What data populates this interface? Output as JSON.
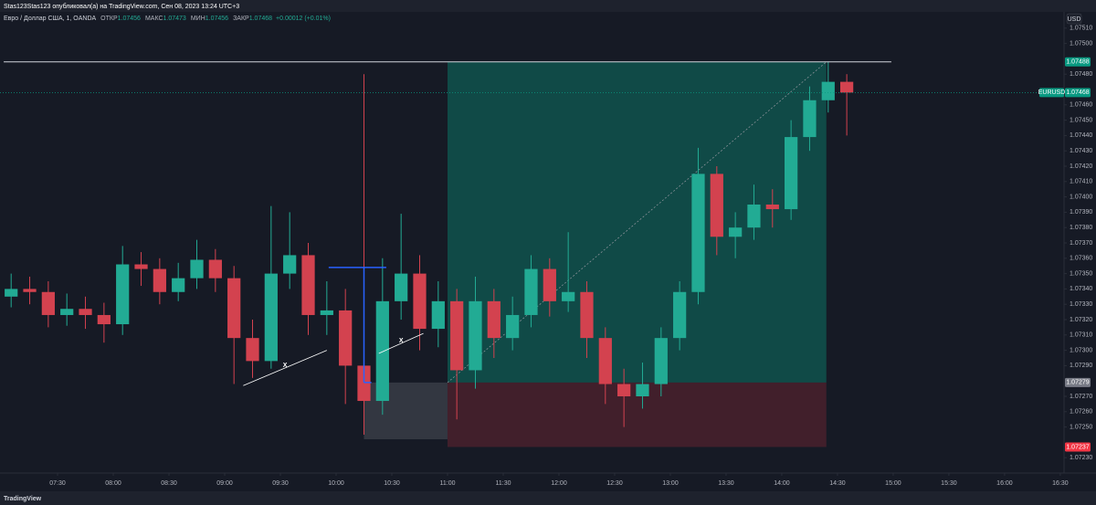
{
  "chart_data": {
    "type": "candlestick",
    "publisher_line": "Stas123Stas123 опубликовал(а) на TradingView.com, Сен 08, 2023 13:24 UTC+3",
    "symbol_title": "Евро / Доллар США, 1, OANDA",
    "ohlc_legend": [
      {
        "name": "ОТКР",
        "value": "1.07456"
      },
      {
        "name": "МАКС",
        "value": "1.07473"
      },
      {
        "name": "МИН",
        "value": "1.07456"
      },
      {
        "name": "ЗАКР",
        "value": "1.07468"
      }
    ],
    "change": "+0.00012 (+0.01%)",
    "currency": "USD",
    "footer": "TradingView",
    "grid": false,
    "up_color": "#22ab94",
    "down_color": "#d3424f",
    "x": [
      "07:00",
      "07:10",
      "07:20",
      "07:30",
      "07:40",
      "07:50",
      "08:00",
      "08:10",
      "08:20",
      "08:30",
      "08:40",
      "08:50",
      "09:00",
      "09:10",
      "09:20",
      "09:30",
      "09:40",
      "09:50",
      "10:00",
      "10:10",
      "10:20",
      "10:30",
      "10:40",
      "10:50",
      "11:00",
      "11:10",
      "11:20",
      "11:30",
      "11:40",
      "11:50",
      "12:00",
      "12:10",
      "12:20",
      "12:30",
      "12:40",
      "12:50",
      "13:00",
      "13:10",
      "13:20",
      "13:30",
      "13:40",
      "13:50",
      "14:00",
      "14:10",
      "14:20",
      "14:30"
    ],
    "open": [
      1.07335,
      1.0734,
      1.07338,
      1.07323,
      1.07327,
      1.07323,
      1.07317,
      1.07356,
      1.07353,
      1.07338,
      1.07347,
      1.07359,
      1.07347,
      1.07308,
      1.07293,
      1.0735,
      1.07362,
      1.07323,
      1.07326,
      1.0729,
      1.07267,
      1.07332,
      1.0735,
      1.07314,
      1.07332,
      1.07287,
      1.07332,
      1.07308,
      1.07323,
      1.07353,
      1.07332,
      1.07338,
      1.07308,
      1.07278,
      1.0727,
      1.07278,
      1.07308,
      1.07338,
      1.07415,
      1.07374,
      1.0738,
      1.07395,
      1.07392,
      1.07439,
      1.07463,
      1.07475
    ],
    "high": [
      1.0735,
      1.07348,
      1.07345,
      1.07337,
      1.07335,
      1.07331,
      1.07368,
      1.07364,
      1.0736,
      1.07357,
      1.07372,
      1.07366,
      1.07355,
      1.0732,
      1.07394,
      1.0739,
      1.0737,
      1.07345,
      1.0734,
      1.0748,
      1.0736,
      1.07389,
      1.07362,
      1.07345,
      1.0734,
      1.07348,
      1.0734,
      1.07335,
      1.07362,
      1.0736,
      1.07377,
      1.07345,
      1.07315,
      1.07288,
      1.07292,
      1.07315,
      1.07345,
      1.07432,
      1.0742,
      1.0739,
      1.07408,
      1.07405,
      1.0745,
      1.07472,
      1.07488,
      1.0748
    ],
    "low": [
      1.07328,
      1.0733,
      1.07315,
      1.07316,
      1.07314,
      1.07305,
      1.0731,
      1.07342,
      1.0733,
      1.07332,
      1.0734,
      1.07338,
      1.07278,
      1.07282,
      1.07288,
      1.0734,
      1.0731,
      1.0731,
      1.07265,
      1.07245,
      1.07258,
      1.0732,
      1.073,
      1.07302,
      1.07255,
      1.07275,
      1.07295,
      1.073,
      1.07315,
      1.07322,
      1.07325,
      1.07295,
      1.07265,
      1.0725,
      1.07262,
      1.0727,
      1.073,
      1.0733,
      1.07362,
      1.0736,
      1.07372,
      1.0738,
      1.07385,
      1.0743,
      1.07455,
      1.0744
    ],
    "close": [
      1.0734,
      1.07338,
      1.07323,
      1.07327,
      1.07323,
      1.07317,
      1.07356,
      1.07353,
      1.07338,
      1.07347,
      1.07359,
      1.07347,
      1.07308,
      1.07293,
      1.0735,
      1.07362,
      1.07323,
      1.07326,
      1.0729,
      1.07267,
      1.07332,
      1.0735,
      1.07314,
      1.07332,
      1.07287,
      1.07332,
      1.07308,
      1.07323,
      1.07353,
      1.07332,
      1.07338,
      1.07308,
      1.07278,
      1.0727,
      1.07278,
      1.07308,
      1.07338,
      1.07415,
      1.07374,
      1.0738,
      1.07395,
      1.07392,
      1.07439,
      1.07463,
      1.07475,
      1.07468
    ],
    "xlim": [
      "06:59",
      "16:32"
    ],
    "xticks": [
      "07:30",
      "08:00",
      "08:30",
      "09:00",
      "09:30",
      "10:00",
      "10:30",
      "11:00",
      "11:30",
      "12:00",
      "12:30",
      "13:00",
      "13:30",
      "14:00",
      "14:30",
      "15:00",
      "15:30",
      "16:00",
      "16:30"
    ],
    "ylim": [
      1.0722,
      1.0752
    ],
    "yticks": [
      {
        "value": 1.0751,
        "label": "1.07510"
      },
      {
        "value": 1.075,
        "label": "1.07500"
      },
      {
        "value": 1.0748,
        "label": "1.07480"
      },
      {
        "value": 1.0746,
        "label": "1.07460"
      },
      {
        "value": 1.0745,
        "label": "1.07450"
      },
      {
        "value": 1.0744,
        "label": "1.07440"
      },
      {
        "value": 1.0743,
        "label": "1.07430"
      },
      {
        "value": 1.0742,
        "label": "1.07420"
      },
      {
        "value": 1.0741,
        "label": "1.07410"
      },
      {
        "value": 1.074,
        "label": "1.07400"
      },
      {
        "value": 1.0739,
        "label": "1.07390"
      },
      {
        "value": 1.0738,
        "label": "1.07380"
      },
      {
        "value": 1.0737,
        "label": "1.07370"
      },
      {
        "value": 1.0736,
        "label": "1.07360"
      },
      {
        "value": 1.0735,
        "label": "1.07350"
      },
      {
        "value": 1.0734,
        "label": "1.07340"
      },
      {
        "value": 1.0733,
        "label": "1.07330"
      },
      {
        "value": 1.0732,
        "label": "1.07320"
      },
      {
        "value": 1.0731,
        "label": "1.07310"
      },
      {
        "value": 1.073,
        "label": "1.07300"
      },
      {
        "value": 1.0729,
        "label": "1.07290"
      },
      {
        "value": 1.0727,
        "label": "1.07270"
      },
      {
        "value": 1.0726,
        "label": "1.07260"
      },
      {
        "value": 1.0725,
        "label": "1.07250"
      },
      {
        "value": 1.0723,
        "label": "1.07230"
      }
    ],
    "last_price": {
      "symbol": "EURUSD",
      "value": 1.07468,
      "label": "1.07468",
      "color": "#089981"
    },
    "horizontal_line": {
      "value": 1.07488,
      "from": "07:01",
      "to": "14:59"
    },
    "position": {
      "from": "11:00",
      "to": "14:24",
      "target": {
        "value": 1.07488,
        "label": "1.07488",
        "color": "#089981"
      },
      "entry": {
        "value": 1.07279,
        "label": "1.07279",
        "color": "#787b86"
      },
      "stop": {
        "value": 1.07237,
        "label": "1.07237",
        "color": "#f23645"
      }
    },
    "zone": {
      "from": "10:15",
      "to": "11:00",
      "top": 1.07279,
      "bottom": 1.07242
    },
    "blue_lines": [
      {
        "x": [
          "09:56",
          "10:27"
        ],
        "y": [
          1.07354,
          1.07354
        ]
      },
      {
        "x": [
          "10:15",
          "10:15"
        ],
        "y": [
          1.07354,
          1.07279
        ]
      },
      {
        "x": [
          "10:15",
          "10:19"
        ],
        "y": [
          1.07279,
          1.07279
        ]
      }
    ],
    "annotations": [
      {
        "text": "X",
        "x": [
          "09:10",
          "09:55"
        ],
        "y": [
          1.07277,
          1.073
        ]
      },
      {
        "text": "X",
        "x": [
          "10:23",
          "10:47"
        ],
        "y": [
          1.07298,
          1.07311
        ]
      }
    ]
  }
}
